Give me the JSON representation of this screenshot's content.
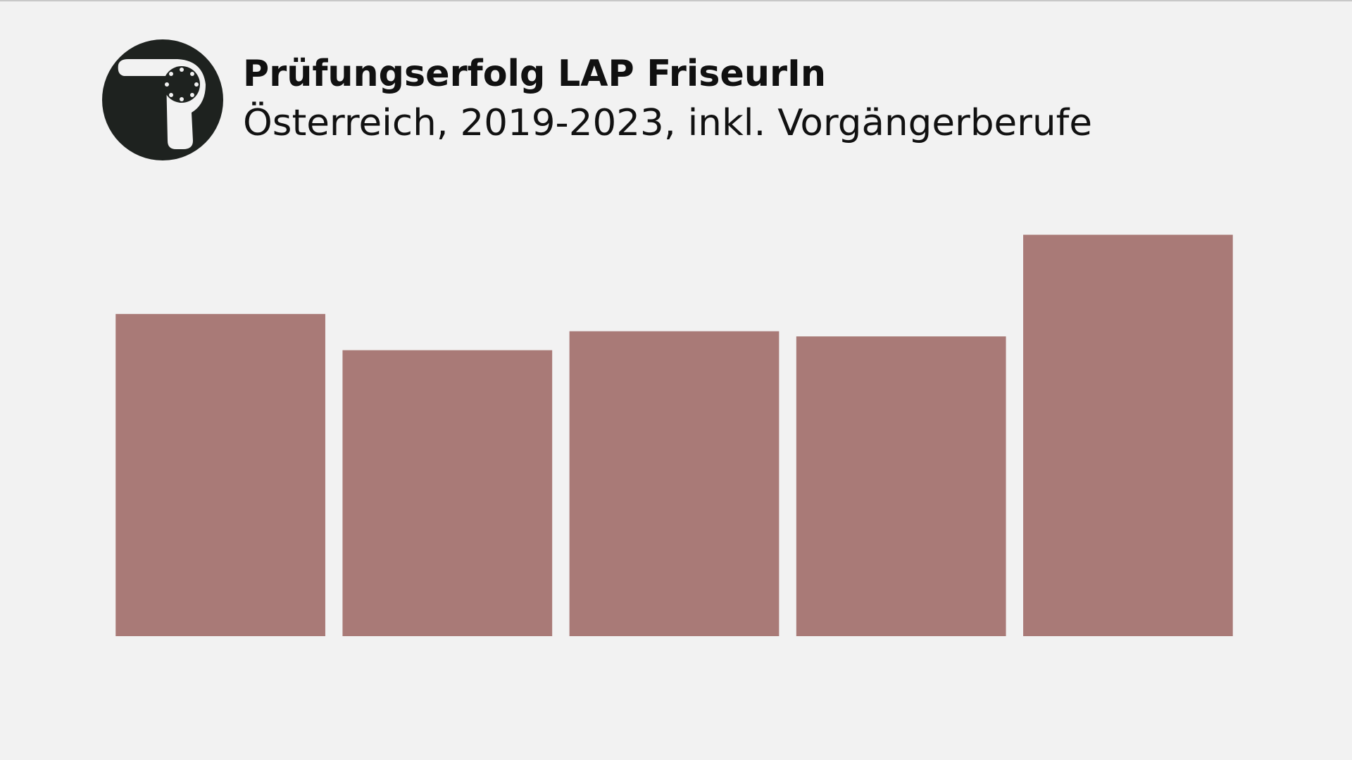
{
  "chart_data": {
    "type": "bar",
    "title": "Prüfungserfolg LAP FriseurIn",
    "subtitle": "Österreich, 2019-2023, inkl. Vorgängerberufe",
    "categories": [
      null,
      null,
      null,
      null,
      null
    ],
    "values": [
      374,
      332,
      354,
      348,
      466
    ],
    "color": "#a97a77",
    "ylim": [
      0,
      500
    ]
  }
}
